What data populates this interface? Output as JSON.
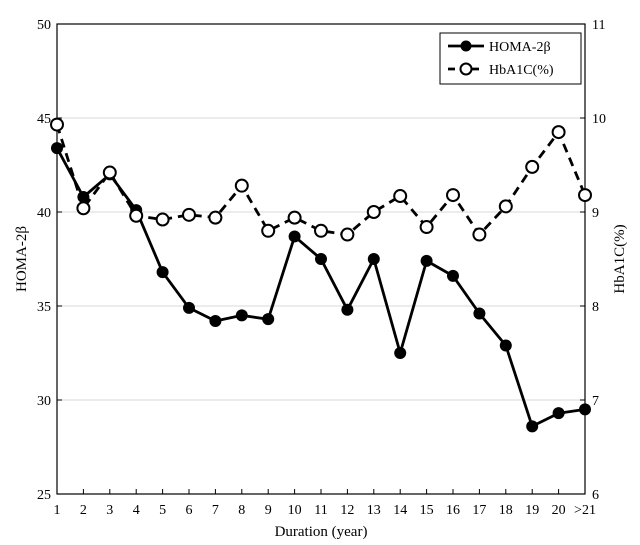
{
  "chart_data": {
    "type": "line",
    "xlabel": "Duration (year)",
    "ylabel_left": "HOMA-2β",
    "ylabel_right": "HbA1C(%)",
    "categories": [
      "1",
      "2",
      "3",
      "4",
      "5",
      "6",
      "7",
      "8",
      "9",
      "10",
      "11",
      "12",
      "13",
      "14",
      "15",
      "16",
      "17",
      "18",
      "19",
      "20",
      ">21"
    ],
    "ylim_left": [
      25,
      50
    ],
    "yticks_left": [
      "25",
      "30",
      "35",
      "40",
      "45",
      "50"
    ],
    "ylim_right": [
      6,
      11
    ],
    "yticks_right": [
      "6",
      "7",
      "8",
      "9",
      "10",
      "11"
    ],
    "grid": "horizontal",
    "legend_position": "top-right",
    "series": [
      {
        "name": "HOMA-2β",
        "axis": "left",
        "style": "solid-filled",
        "color": "#000000",
        "values": [
          43.4,
          40.8,
          42.0,
          40.1,
          36.8,
          34.9,
          34.2,
          34.5,
          34.3,
          38.7,
          37.5,
          34.8,
          37.5,
          32.5,
          37.4,
          36.6,
          34.6,
          32.9,
          28.6,
          29.3,
          29.5
        ]
      },
      {
        "name": "HbA1C(%)",
        "axis": "right",
        "style": "dashed-open",
        "color": "#000000",
        "values": [
          9.93,
          9.04,
          9.42,
          8.96,
          8.92,
          8.97,
          8.94,
          9.28,
          8.8,
          8.94,
          8.8,
          8.76,
          9.0,
          9.17,
          8.84,
          9.18,
          8.76,
          9.06,
          9.48,
          9.85,
          9.18
        ]
      }
    ]
  }
}
